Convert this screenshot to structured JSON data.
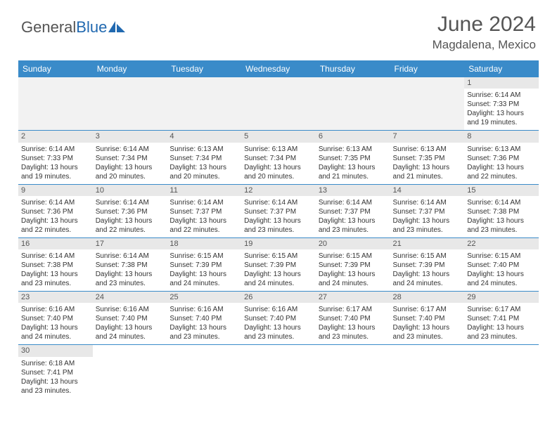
{
  "logo": {
    "part1": "General",
    "part2": "Blue"
  },
  "title": "June 2024",
  "location": "Magdalena, Mexico",
  "colors": {
    "header_bg": "#3a8bc9",
    "daynum_bg": "#e8e8e8",
    "empty_bg": "#f2f2f2",
    "border": "#3a8bc9",
    "text": "#333333",
    "title_color": "#555555"
  },
  "dayHeaders": [
    "Sunday",
    "Monday",
    "Tuesday",
    "Wednesday",
    "Thursday",
    "Friday",
    "Saturday"
  ],
  "weeks": [
    [
      null,
      null,
      null,
      null,
      null,
      null,
      {
        "n": "1",
        "sr": "Sunrise: 6:14 AM",
        "ss": "Sunset: 7:33 PM",
        "d1": "Daylight: 13 hours",
        "d2": "and 19 minutes."
      }
    ],
    [
      {
        "n": "2",
        "sr": "Sunrise: 6:14 AM",
        "ss": "Sunset: 7:33 PM",
        "d1": "Daylight: 13 hours",
        "d2": "and 19 minutes."
      },
      {
        "n": "3",
        "sr": "Sunrise: 6:14 AM",
        "ss": "Sunset: 7:34 PM",
        "d1": "Daylight: 13 hours",
        "d2": "and 20 minutes."
      },
      {
        "n": "4",
        "sr": "Sunrise: 6:13 AM",
        "ss": "Sunset: 7:34 PM",
        "d1": "Daylight: 13 hours",
        "d2": "and 20 minutes."
      },
      {
        "n": "5",
        "sr": "Sunrise: 6:13 AM",
        "ss": "Sunset: 7:34 PM",
        "d1": "Daylight: 13 hours",
        "d2": "and 20 minutes."
      },
      {
        "n": "6",
        "sr": "Sunrise: 6:13 AM",
        "ss": "Sunset: 7:35 PM",
        "d1": "Daylight: 13 hours",
        "d2": "and 21 minutes."
      },
      {
        "n": "7",
        "sr": "Sunrise: 6:13 AM",
        "ss": "Sunset: 7:35 PM",
        "d1": "Daylight: 13 hours",
        "d2": "and 21 minutes."
      },
      {
        "n": "8",
        "sr": "Sunrise: 6:13 AM",
        "ss": "Sunset: 7:36 PM",
        "d1": "Daylight: 13 hours",
        "d2": "and 22 minutes."
      }
    ],
    [
      {
        "n": "9",
        "sr": "Sunrise: 6:14 AM",
        "ss": "Sunset: 7:36 PM",
        "d1": "Daylight: 13 hours",
        "d2": "and 22 minutes."
      },
      {
        "n": "10",
        "sr": "Sunrise: 6:14 AM",
        "ss": "Sunset: 7:36 PM",
        "d1": "Daylight: 13 hours",
        "d2": "and 22 minutes."
      },
      {
        "n": "11",
        "sr": "Sunrise: 6:14 AM",
        "ss": "Sunset: 7:37 PM",
        "d1": "Daylight: 13 hours",
        "d2": "and 22 minutes."
      },
      {
        "n": "12",
        "sr": "Sunrise: 6:14 AM",
        "ss": "Sunset: 7:37 PM",
        "d1": "Daylight: 13 hours",
        "d2": "and 23 minutes."
      },
      {
        "n": "13",
        "sr": "Sunrise: 6:14 AM",
        "ss": "Sunset: 7:37 PM",
        "d1": "Daylight: 13 hours",
        "d2": "and 23 minutes."
      },
      {
        "n": "14",
        "sr": "Sunrise: 6:14 AM",
        "ss": "Sunset: 7:37 PM",
        "d1": "Daylight: 13 hours",
        "d2": "and 23 minutes."
      },
      {
        "n": "15",
        "sr": "Sunrise: 6:14 AM",
        "ss": "Sunset: 7:38 PM",
        "d1": "Daylight: 13 hours",
        "d2": "and 23 minutes."
      }
    ],
    [
      {
        "n": "16",
        "sr": "Sunrise: 6:14 AM",
        "ss": "Sunset: 7:38 PM",
        "d1": "Daylight: 13 hours",
        "d2": "and 23 minutes."
      },
      {
        "n": "17",
        "sr": "Sunrise: 6:14 AM",
        "ss": "Sunset: 7:38 PM",
        "d1": "Daylight: 13 hours",
        "d2": "and 23 minutes."
      },
      {
        "n": "18",
        "sr": "Sunrise: 6:15 AM",
        "ss": "Sunset: 7:39 PM",
        "d1": "Daylight: 13 hours",
        "d2": "and 24 minutes."
      },
      {
        "n": "19",
        "sr": "Sunrise: 6:15 AM",
        "ss": "Sunset: 7:39 PM",
        "d1": "Daylight: 13 hours",
        "d2": "and 24 minutes."
      },
      {
        "n": "20",
        "sr": "Sunrise: 6:15 AM",
        "ss": "Sunset: 7:39 PM",
        "d1": "Daylight: 13 hours",
        "d2": "and 24 minutes."
      },
      {
        "n": "21",
        "sr": "Sunrise: 6:15 AM",
        "ss": "Sunset: 7:39 PM",
        "d1": "Daylight: 13 hours",
        "d2": "and 24 minutes."
      },
      {
        "n": "22",
        "sr": "Sunrise: 6:15 AM",
        "ss": "Sunset: 7:40 PM",
        "d1": "Daylight: 13 hours",
        "d2": "and 24 minutes."
      }
    ],
    [
      {
        "n": "23",
        "sr": "Sunrise: 6:16 AM",
        "ss": "Sunset: 7:40 PM",
        "d1": "Daylight: 13 hours",
        "d2": "and 24 minutes."
      },
      {
        "n": "24",
        "sr": "Sunrise: 6:16 AM",
        "ss": "Sunset: 7:40 PM",
        "d1": "Daylight: 13 hours",
        "d2": "and 24 minutes."
      },
      {
        "n": "25",
        "sr": "Sunrise: 6:16 AM",
        "ss": "Sunset: 7:40 PM",
        "d1": "Daylight: 13 hours",
        "d2": "and 23 minutes."
      },
      {
        "n": "26",
        "sr": "Sunrise: 6:16 AM",
        "ss": "Sunset: 7:40 PM",
        "d1": "Daylight: 13 hours",
        "d2": "and 23 minutes."
      },
      {
        "n": "27",
        "sr": "Sunrise: 6:17 AM",
        "ss": "Sunset: 7:40 PM",
        "d1": "Daylight: 13 hours",
        "d2": "and 23 minutes."
      },
      {
        "n": "28",
        "sr": "Sunrise: 6:17 AM",
        "ss": "Sunset: 7:40 PM",
        "d1": "Daylight: 13 hours",
        "d2": "and 23 minutes."
      },
      {
        "n": "29",
        "sr": "Sunrise: 6:17 AM",
        "ss": "Sunset: 7:41 PM",
        "d1": "Daylight: 13 hours",
        "d2": "and 23 minutes."
      }
    ],
    [
      {
        "n": "30",
        "sr": "Sunrise: 6:18 AM",
        "ss": "Sunset: 7:41 PM",
        "d1": "Daylight: 13 hours",
        "d2": "and 23 minutes."
      },
      null,
      null,
      null,
      null,
      null,
      null
    ]
  ]
}
